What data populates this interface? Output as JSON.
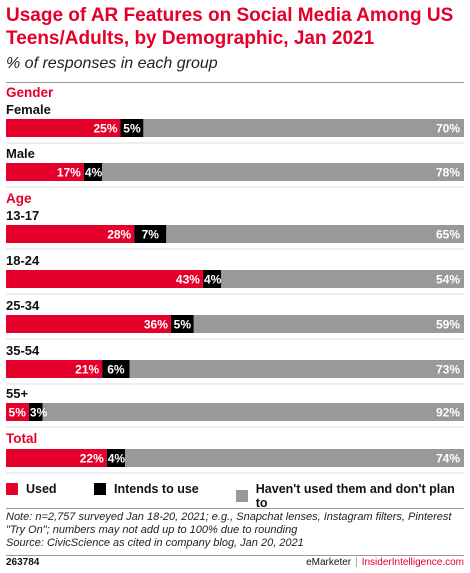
{
  "title": "Usage of AR Features on Social Media Among US Teens/Adults, by Demographic, Jan 2021",
  "subtitle": "% of responses in each group",
  "colors": {
    "used": "#e4002b",
    "intends": "#000000",
    "not_used": "#999999",
    "section": "#e4002b"
  },
  "legend": {
    "used": "Used",
    "intends": "Intends to use",
    "not_used": "Haven't used them and don't plan to"
  },
  "chart_data": {
    "type": "bar",
    "orientation": "horizontal",
    "stacked": true,
    "title": "Usage of AR Features on Social Media Among US Teens/Adults, by Demographic, Jan 2021",
    "subtitle": "% of responses in each group",
    "series_names": [
      "Used",
      "Intends to use",
      "Haven't used them and don't plan to"
    ],
    "groups": [
      {
        "section": "Gender",
        "label": "Female",
        "values": [
          25,
          5,
          70
        ],
        "labels": [
          "25%",
          "5%",
          "70%"
        ]
      },
      {
        "label": "Male",
        "values": [
          17,
          4,
          78
        ],
        "labels": [
          "17%",
          "4%",
          "78%"
        ]
      },
      {
        "section": "Age",
        "label": "13-17",
        "values": [
          28,
          7,
          65
        ],
        "labels": [
          "28%",
          "7%",
          "65%"
        ]
      },
      {
        "label": "18-24",
        "values": [
          43,
          4,
          54
        ],
        "labels": [
          "43%",
          "4%",
          "54%"
        ]
      },
      {
        "label": "25-34",
        "values": [
          36,
          5,
          59
        ],
        "labels": [
          "36%",
          "5%",
          "59%"
        ]
      },
      {
        "label": "35-54",
        "values": [
          21,
          6,
          73
        ],
        "labels": [
          "21%",
          "6%",
          "73%"
        ]
      },
      {
        "label": "55+",
        "values": [
          5,
          3,
          92
        ],
        "labels": [
          "5%",
          "3%",
          "92%"
        ]
      },
      {
        "section": "Total",
        "label": "",
        "values": [
          22,
          4,
          74
        ],
        "labels": [
          "22%",
          "4%",
          "74%"
        ]
      }
    ],
    "legend_position": "bottom",
    "grid": false
  },
  "notes": {
    "note": "Note: n=2,757 surveyed Jan 18-20, 2021; e.g., Snapchat lenses, Instagram filters, Pinterest \"Try On\"; numbers may not add up to 100% due to rounding",
    "source": "Source: CivicScience as cited in company blog, Jan 20, 2021"
  },
  "footer": {
    "id": "263784",
    "brand": "eMarketer",
    "separator": "|",
    "brand2": "InsiderIntelligence.com"
  }
}
